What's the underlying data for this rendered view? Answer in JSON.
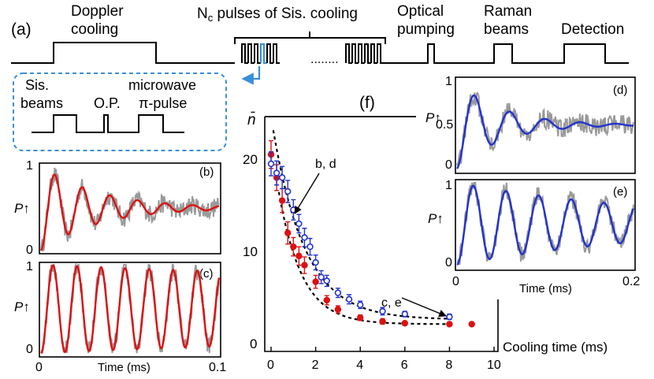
{
  "panel_a": {
    "label": "(a)",
    "steps": [
      {
        "name": "Doppler cooling",
        "lines": [
          "Doppler",
          "cooling"
        ]
      },
      {
        "name": "Nc pulses of Sis. cooling",
        "lines": [
          "N",
          "c",
          " pulses of Sis. cooling"
        ]
      },
      {
        "name": "Optical pumping",
        "lines": [
          "Optical",
          "pumping"
        ]
      },
      {
        "name": "Raman beams",
        "lines": [
          "Raman",
          "beams"
        ]
      },
      {
        "name": "Detection",
        "lines": [
          "Detection"
        ]
      }
    ],
    "dots": "........",
    "inset": {
      "labels": [
        "Sis.",
        "beams",
        "O.P.",
        "microwave",
        "π-pulse"
      ]
    },
    "colors": {
      "highlight": "#3a8fd8",
      "inset_border": "#3a8fd8"
    }
  },
  "chart_data": [
    {
      "id": "b",
      "type": "line",
      "label": "(b)",
      "ylabel": "P↑",
      "ytick_labels": [
        "1",
        "0"
      ],
      "ylim": [
        0,
        1
      ],
      "xlim": [
        0,
        0.1
      ],
      "series": [
        {
          "role": "data",
          "color": "#999999"
        },
        {
          "role": "fit",
          "color": "#dd1111",
          "model": "damped-cosine",
          "offset": 0.5,
          "amplitude": 0.5,
          "period_ms": 0.0155,
          "decay_ms": 0.032
        }
      ]
    },
    {
      "id": "c",
      "type": "line",
      "label": "(c)",
      "ylabel": "P↑",
      "ytick_labels": [
        "1",
        "0"
      ],
      "ylim": [
        0,
        1
      ],
      "xlabel": "Time (ms)",
      "xtick_labels": [
        "0",
        "0.1"
      ],
      "xlim": [
        0,
        0.1
      ],
      "series": [
        {
          "role": "data",
          "color": "#999999"
        },
        {
          "role": "fit",
          "color": "#dd1111",
          "model": "damped-cosine",
          "offset": 0.5,
          "amplitude": 0.5,
          "period_ms": 0.0135,
          "decay_ms": 0.6
        }
      ]
    },
    {
      "id": "d",
      "type": "line",
      "label": "(d)",
      "ylabel": "P↑",
      "ytick_labels": [
        "1",
        "0.5",
        "0"
      ],
      "ylim": [
        0,
        1
      ],
      "xlim": [
        0,
        0.2
      ],
      "series": [
        {
          "role": "data",
          "color": "#999999"
        },
        {
          "role": "fit",
          "color": "#2233cc",
          "model": "damped-cosine",
          "offset": 0.5,
          "amplitude": 0.5,
          "period_ms": 0.04,
          "decay_ms": 0.05
        }
      ]
    },
    {
      "id": "e",
      "type": "line",
      "label": "(e)",
      "ylabel": "P↑",
      "ytick_labels": [
        "1",
        "0"
      ],
      "ylim": [
        0,
        1
      ],
      "xlabel": "Time (ms)",
      "xtick_labels": [
        "0",
        "0.2"
      ],
      "xlim": [
        0,
        0.2
      ],
      "series": [
        {
          "role": "data",
          "color": "#999999"
        },
        {
          "role": "fit",
          "color": "#2233cc",
          "model": "damped-cosine",
          "offset": 0.5,
          "amplitude": 0.5,
          "period_ms": 0.037,
          "decay_ms": 0.25
        }
      ]
    },
    {
      "id": "f",
      "type": "scatter",
      "label": "(f)",
      "ylabel": "n̄",
      "xlabel": "Cooling time (ms)",
      "xlim": [
        0,
        10
      ],
      "ylim": [
        0,
        24
      ],
      "xticks": [
        0,
        2,
        4,
        6,
        8,
        10
      ],
      "yticks": [
        0,
        10,
        20
      ],
      "annotations": [
        {
          "text": "b, d",
          "x": 1.1,
          "y": 14
        },
        {
          "text": "c, e",
          "x": 8,
          "y": 2.8
        }
      ],
      "series": [
        {
          "name": "red",
          "color": "#dd1111",
          "marker": "filled-circle",
          "x": [
            0,
            0.25,
            0.5,
            0.75,
            1.0,
            1.25,
            1.5,
            2,
            2.5,
            3,
            4,
            5,
            6,
            8,
            9
          ],
          "y": [
            20.5,
            18,
            15.5,
            12,
            10.5,
            9.5,
            8.5,
            6.7,
            4.7,
            3.7,
            2.8,
            2.4,
            2.2,
            2.1,
            2.1
          ],
          "err": [
            1.5,
            1.4,
            1.3,
            1.2,
            1.0,
            1.0,
            0.9,
            0.7,
            0.5,
            0.4,
            0.3,
            0.3,
            0.2,
            0.2,
            0.2
          ]
        },
        {
          "name": "blue",
          "color": "#2233cc",
          "marker": "open-circle",
          "x": [
            0,
            0.25,
            0.5,
            0.75,
            1.0,
            1.25,
            1.5,
            1.75,
            2,
            2.25,
            2.5,
            3,
            3.5,
            4,
            5,
            6,
            8
          ],
          "y": [
            19.5,
            18.5,
            18,
            16.5,
            14.5,
            13,
            11.5,
            10.5,
            8.8,
            7.2,
            6.8,
            5.5,
            4.8,
            4.2,
            3.5,
            3.2,
            2.9
          ],
          "err": [
            1.3,
            1.3,
            1.2,
            1.2,
            1.1,
            1.0,
            1.0,
            0.9,
            0.8,
            0.7,
            0.6,
            0.5,
            0.5,
            0.4,
            0.4,
            0.3,
            0.3
          ]
        },
        {
          "name": "fit-upper",
          "color": "#000000",
          "style": "dashed",
          "model": "exp",
          "asymptote": 2.6,
          "amplitude": 22,
          "tau_ms": 1.45,
          "x_range": [
            0.1,
            8
          ]
        },
        {
          "name": "fit-lower",
          "color": "#000000",
          "style": "dashed",
          "model": "exp",
          "asymptote": 2.1,
          "amplitude": 20,
          "tau_ms": 1.05,
          "x_range": [
            0.35,
            8
          ]
        }
      ]
    }
  ]
}
